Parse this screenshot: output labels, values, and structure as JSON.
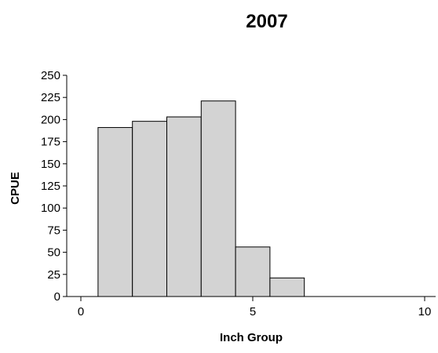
{
  "chart_data": {
    "type": "bar",
    "title": "2007",
    "xlabel": "Inch Group",
    "ylabel": "CPUE",
    "xlim": [
      0,
      10
    ],
    "ylim": [
      0,
      250
    ],
    "x_ticks": [
      0,
      5,
      10
    ],
    "y_ticks": [
      0,
      25,
      50,
      75,
      100,
      125,
      150,
      175,
      200,
      225,
      250
    ],
    "x": [
      1,
      2,
      3,
      4,
      5,
      6
    ],
    "values": [
      191,
      198,
      203,
      221,
      56,
      21
    ],
    "grid": false,
    "legend": "none",
    "bar_fill": "#d3d3d3",
    "bar_stroke": "#000000"
  }
}
